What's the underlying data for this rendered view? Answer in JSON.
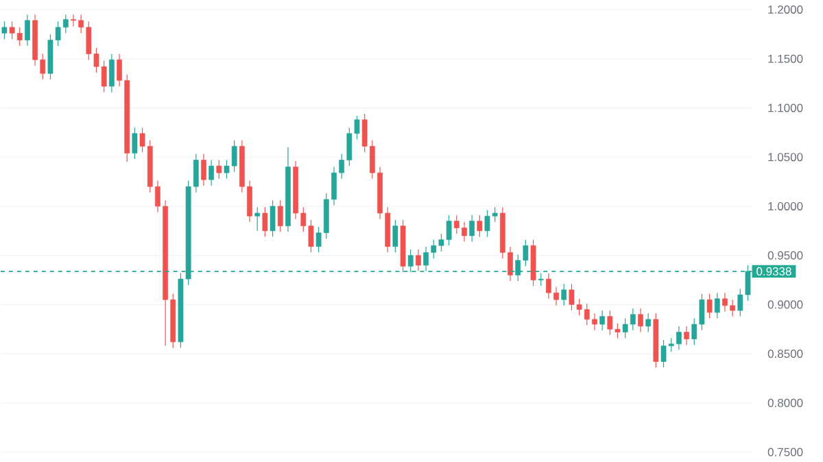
{
  "chart_data": {
    "type": "candlestick",
    "categories": [
      null,
      null,
      null,
      null,
      null,
      null,
      null,
      null,
      null,
      null,
      null,
      null,
      null,
      null,
      null,
      null,
      null,
      null,
      null,
      null,
      null,
      null,
      null,
      null,
      null,
      null,
      null,
      null,
      null,
      null,
      null,
      null,
      null,
      null,
      null,
      null,
      null,
      null,
      null,
      null,
      null,
      null,
      null,
      null,
      null,
      null,
      null,
      null,
      null,
      null,
      null,
      null,
      null,
      null,
      null,
      null,
      null,
      null,
      null,
      null,
      null,
      null,
      null,
      null,
      null,
      null,
      null,
      null,
      null,
      null,
      null,
      null,
      null,
      null,
      null,
      null,
      null,
      null,
      null,
      null,
      null,
      null,
      null,
      null,
      null,
      null,
      null,
      null,
      null,
      null,
      null,
      null,
      null,
      null,
      null,
      null,
      null,
      null
    ],
    "ohlc": [
      [
        1.176,
        1.188,
        1.17,
        1.182
      ],
      [
        1.182,
        1.188,
        1.17,
        1.176
      ],
      [
        1.176,
        1.182,
        1.163,
        1.169
      ],
      [
        1.169,
        1.195,
        1.163,
        1.189
      ],
      [
        1.189,
        1.195,
        1.143,
        1.149
      ],
      [
        1.149,
        1.155,
        1.129,
        1.135
      ],
      [
        1.135,
        1.175,
        1.129,
        1.169
      ],
      [
        1.169,
        1.188,
        1.163,
        1.182
      ],
      [
        1.182,
        1.195,
        1.176,
        1.19
      ],
      [
        1.19,
        1.195,
        1.183,
        1.189
      ],
      [
        1.189,
        1.195,
        1.176,
        1.182
      ],
      [
        1.182,
        1.188,
        1.149,
        1.155
      ],
      [
        1.155,
        1.161,
        1.136,
        1.142
      ],
      [
        1.142,
        1.148,
        1.116,
        1.122
      ],
      [
        1.122,
        1.155,
        1.116,
        1.149
      ],
      [
        1.149,
        1.155,
        1.122,
        1.128
      ],
      [
        1.128,
        1.134,
        1.045,
        1.054
      ],
      [
        1.054,
        1.08,
        1.048,
        1.074
      ],
      [
        1.074,
        1.08,
        1.055,
        1.061
      ],
      [
        1.061,
        1.067,
        1.014,
        1.02
      ],
      [
        1.02,
        1.026,
        0.994,
        1.0
      ],
      [
        1.0,
        1.006,
        0.858,
        0.905
      ],
      [
        0.905,
        0.911,
        0.856,
        0.862
      ],
      [
        0.862,
        0.932,
        0.856,
        0.926
      ],
      [
        0.926,
        1.026,
        0.92,
        1.02
      ],
      [
        1.02,
        1.053,
        1.014,
        1.047
      ],
      [
        1.047,
        1.053,
        1.021,
        1.027
      ],
      [
        1.027,
        1.047,
        1.021,
        1.041
      ],
      [
        1.041,
        1.047,
        1.028,
        1.034
      ],
      [
        1.034,
        1.047,
        1.028,
        1.041
      ],
      [
        1.041,
        1.067,
        1.035,
        1.061
      ],
      [
        1.061,
        1.067,
        1.014,
        1.02
      ],
      [
        1.02,
        1.026,
        0.984,
        0.99
      ],
      [
        0.99,
        0.999,
        0.975,
        0.993
      ],
      [
        0.993,
        0.999,
        0.969,
        0.975
      ],
      [
        0.975,
        1.006,
        0.969,
        1.0
      ],
      [
        1.0,
        1.006,
        0.974,
        0.98
      ],
      [
        0.98,
        1.06,
        0.974,
        1.04
      ],
      [
        1.04,
        1.046,
        0.987,
        0.993
      ],
      [
        0.993,
        0.999,
        0.974,
        0.98
      ],
      [
        0.98,
        0.986,
        0.953,
        0.959
      ],
      [
        0.959,
        0.979,
        0.953,
        0.973
      ],
      [
        0.973,
        1.013,
        0.967,
        1.007
      ],
      [
        1.007,
        1.04,
        1.001,
        1.034
      ],
      [
        1.034,
        1.053,
        1.028,
        1.047
      ],
      [
        1.047,
        1.08,
        1.041,
        1.074
      ],
      [
        1.074,
        1.092,
        1.068,
        1.088
      ],
      [
        1.088,
        1.094,
        1.055,
        1.061
      ],
      [
        1.061,
        1.067,
        1.028,
        1.034
      ],
      [
        1.034,
        1.04,
        0.987,
        0.993
      ],
      [
        0.993,
        0.999,
        0.953,
        0.959
      ],
      [
        0.959,
        0.986,
        0.953,
        0.98
      ],
      [
        0.98,
        0.986,
        0.933,
        0.939
      ],
      [
        0.939,
        0.956,
        0.933,
        0.95
      ],
      [
        0.95,
        0.956,
        0.934,
        0.94
      ],
      [
        0.94,
        0.959,
        0.934,
        0.953
      ],
      [
        0.953,
        0.966,
        0.947,
        0.96
      ],
      [
        0.96,
        0.972,
        0.954,
        0.966
      ],
      [
        0.966,
        0.991,
        0.96,
        0.985
      ],
      [
        0.985,
        0.991,
        0.972,
        0.978
      ],
      [
        0.978,
        0.984,
        0.964,
        0.97
      ],
      [
        0.97,
        0.991,
        0.964,
        0.985
      ],
      [
        0.985,
        0.991,
        0.969,
        0.975
      ],
      [
        0.975,
        0.996,
        0.969,
        0.99
      ],
      [
        0.99,
        0.999,
        0.984,
        0.993
      ],
      [
        0.993,
        0.999,
        0.947,
        0.953
      ],
      [
        0.953,
        0.959,
        0.924,
        0.93
      ],
      [
        0.93,
        0.951,
        0.924,
        0.945
      ],
      [
        0.945,
        0.966,
        0.939,
        0.96
      ],
      [
        0.96,
        0.966,
        0.919,
        0.925
      ],
      [
        0.925,
        0.932,
        0.919,
        0.926
      ],
      [
        0.926,
        0.932,
        0.906,
        0.912
      ],
      [
        0.912,
        0.918,
        0.899,
        0.905
      ],
      [
        0.905,
        0.921,
        0.899,
        0.915
      ],
      [
        0.915,
        0.921,
        0.894,
        0.9
      ],
      [
        0.9,
        0.906,
        0.889,
        0.895
      ],
      [
        0.895,
        0.901,
        0.879,
        0.885
      ],
      [
        0.885,
        0.891,
        0.874,
        0.88
      ],
      [
        0.88,
        0.894,
        0.874,
        0.888
      ],
      [
        0.888,
        0.894,
        0.869,
        0.875
      ],
      [
        0.875,
        0.881,
        0.866,
        0.872
      ],
      [
        0.872,
        0.886,
        0.866,
        0.88
      ],
      [
        0.88,
        0.896,
        0.874,
        0.89
      ],
      [
        0.89,
        0.896,
        0.872,
        0.878
      ],
      [
        0.878,
        0.891,
        0.872,
        0.885
      ],
      [
        0.885,
        0.891,
        0.836,
        0.842
      ],
      [
        0.842,
        0.864,
        0.836,
        0.858
      ],
      [
        0.858,
        0.866,
        0.852,
        0.86
      ],
      [
        0.86,
        0.878,
        0.854,
        0.872
      ],
      [
        0.872,
        0.878,
        0.859,
        0.865
      ],
      [
        0.865,
        0.886,
        0.859,
        0.88
      ],
      [
        0.88,
        0.911,
        0.874,
        0.905
      ],
      [
        0.905,
        0.911,
        0.886,
        0.892
      ],
      [
        0.892,
        0.912,
        0.886,
        0.906
      ],
      [
        0.906,
        0.912,
        0.893,
        0.899
      ],
      [
        0.899,
        0.905,
        0.888,
        0.894
      ],
      [
        0.894,
        0.916,
        0.888,
        0.91
      ],
      [
        0.91,
        0.94,
        0.904,
        0.9338
      ]
    ],
    "colors": [
      "#26a69a",
      "#ef5350",
      "#ef5350",
      "#26a69a",
      "#ef5350",
      "#ef5350",
      "#26a69a",
      "#26a69a",
      "#26a69a",
      "#ef5350",
      "#ef5350",
      "#ef5350",
      "#ef5350",
      "#ef5350",
      "#26a69a",
      "#ef5350",
      "#ef5350",
      "#26a69a",
      "#ef5350",
      "#ef5350",
      "#ef5350",
      "#ef5350",
      "#ef5350",
      "#26a69a",
      "#26a69a",
      "#26a69a",
      "#ef5350",
      "#26a69a",
      "#ef5350",
      "#26a69a",
      "#26a69a",
      "#ef5350",
      "#ef5350",
      "#26a69a",
      "#ef5350",
      "#26a69a",
      "#ef5350",
      "#26a69a",
      "#ef5350",
      "#ef5350",
      "#ef5350",
      "#26a69a",
      "#26a69a",
      "#26a69a",
      "#26a69a",
      "#26a69a",
      "#26a69a",
      "#ef5350",
      "#ef5350",
      "#ef5350",
      "#ef5350",
      "#26a69a",
      "#ef5350",
      "#26a69a",
      "#ef5350",
      "#26a69a",
      "#26a69a",
      "#26a69a",
      "#26a69a",
      "#ef5350",
      "#ef5350",
      "#26a69a",
      "#ef5350",
      "#26a69a",
      "#26a69a",
      "#ef5350",
      "#ef5350",
      "#26a69a",
      "#26a69a",
      "#ef5350",
      "#26a69a",
      "#ef5350",
      "#ef5350",
      "#26a69a",
      "#ef5350",
      "#ef5350",
      "#ef5350",
      "#ef5350",
      "#26a69a",
      "#ef5350",
      "#ef5350",
      "#26a69a",
      "#26a69a",
      "#ef5350",
      "#26a69a",
      "#ef5350",
      "#26a69a",
      "#26a69a",
      "#26a69a",
      "#ef5350",
      "#26a69a",
      "#26a69a",
      "#ef5350",
      "#26a69a",
      "#ef5350",
      "#ef5350",
      "#26a69a",
      "#26a69a"
    ],
    "ylim": [
      0.75,
      1.2
    ],
    "yticks": [
      {
        "value": 0.75,
        "label": "0.7500"
      },
      {
        "value": 0.8,
        "label": "0.8000"
      },
      {
        "value": 0.85,
        "label": "0.8500"
      },
      {
        "value": 0.9,
        "label": "0.9000"
      },
      {
        "value": 0.95,
        "label": "0.9500"
      },
      {
        "value": 1.0,
        "label": "1.0000"
      },
      {
        "value": 1.05,
        "label": "1.0500"
      },
      {
        "value": 1.1,
        "label": "1.1000"
      },
      {
        "value": 1.15,
        "label": "1.1500"
      },
      {
        "value": 1.2,
        "label": "1.2000"
      }
    ],
    "ref_lines": [
      {
        "axis": "y",
        "value": 0.9338,
        "label": "0.9338",
        "color": "#22ab94",
        "line_style": "dashed"
      }
    ],
    "grid": "y"
  }
}
